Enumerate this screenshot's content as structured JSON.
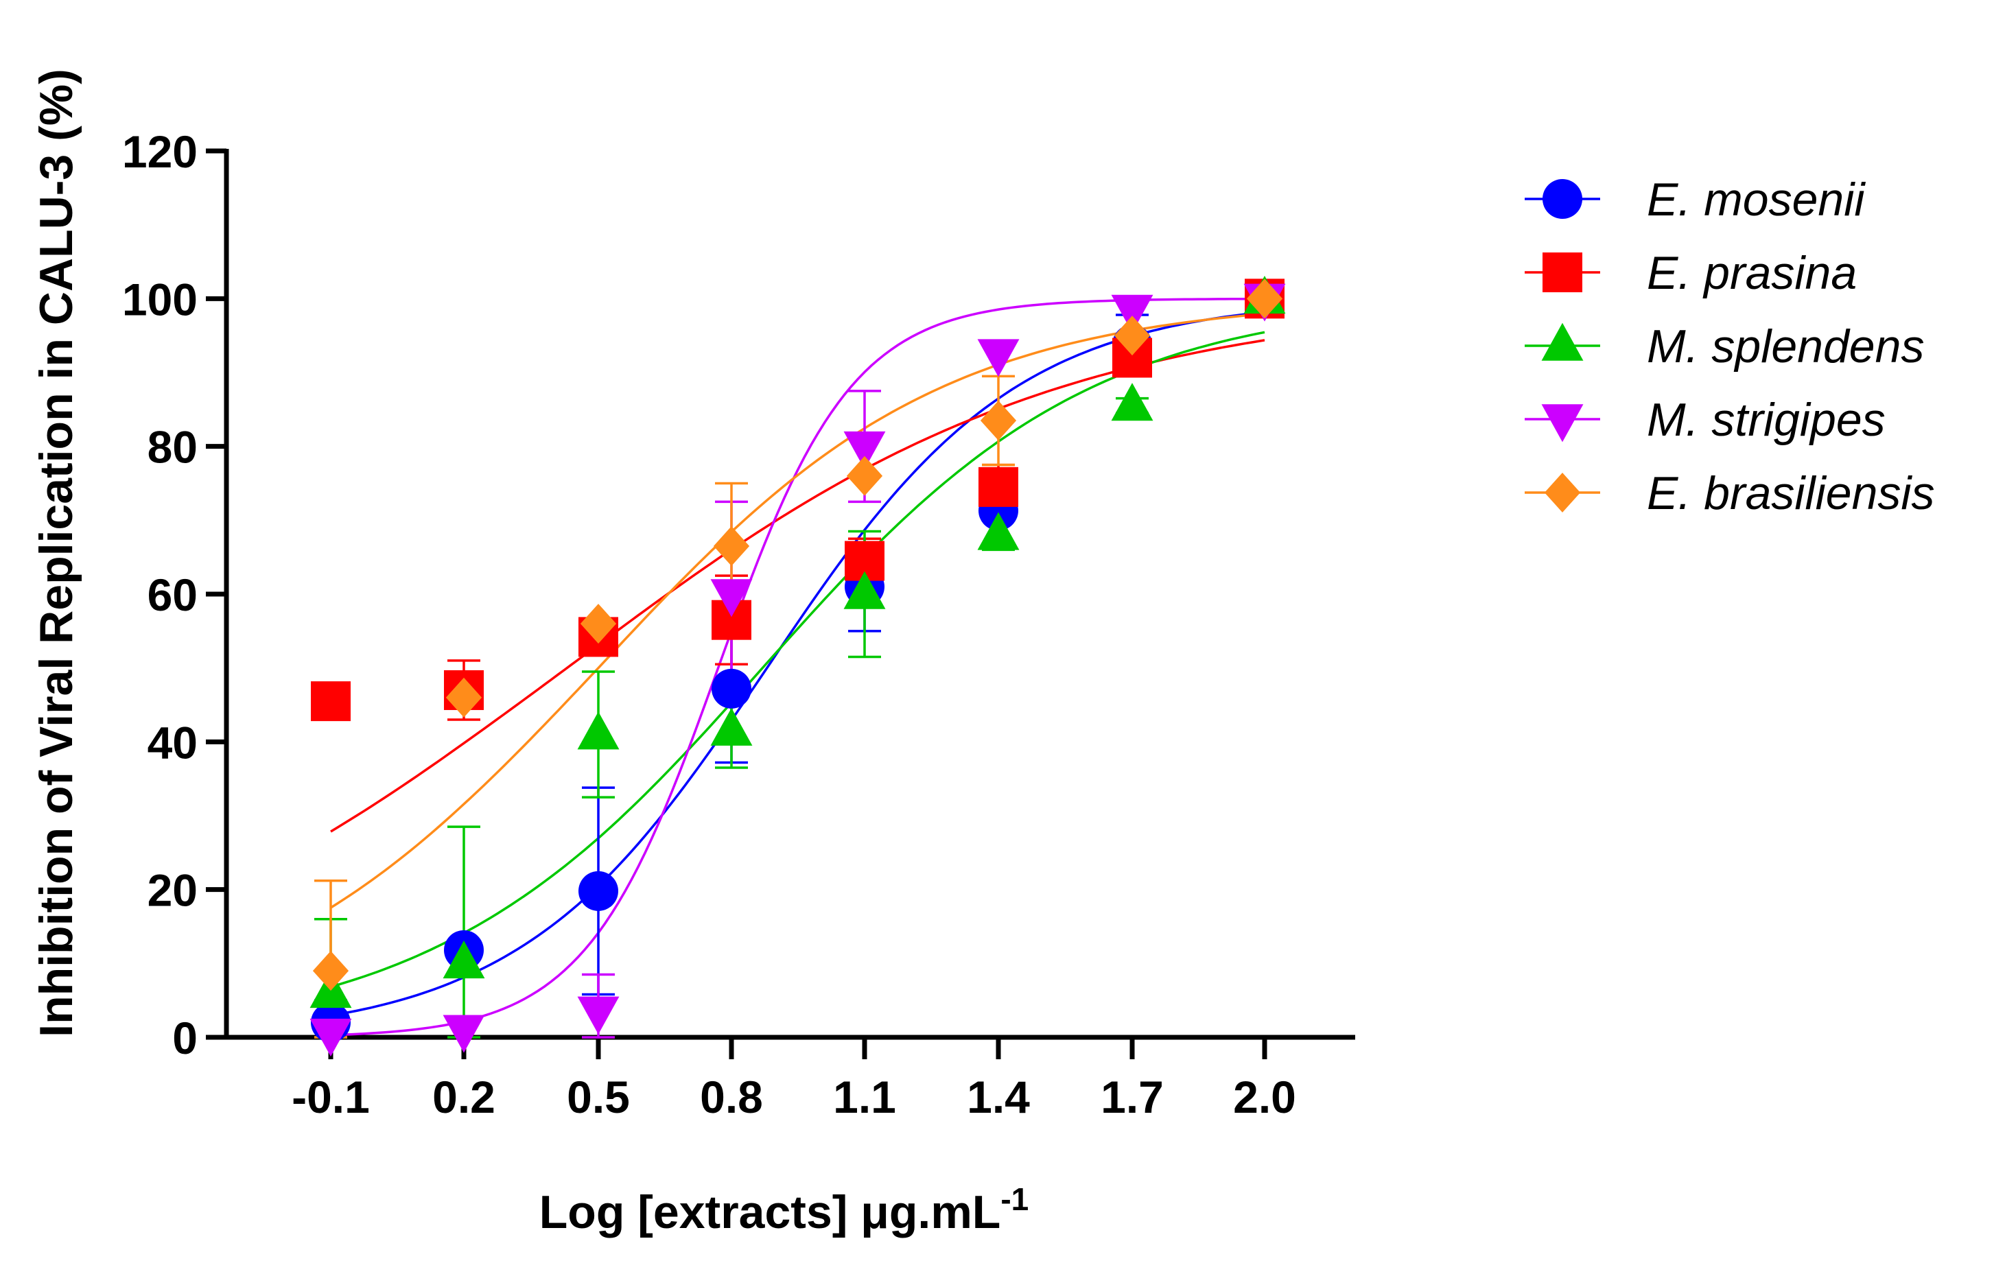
{
  "chart_data": {
    "type": "line",
    "title": "",
    "xlabel": "Log [extracts] μg.mL",
    "xlabel_superscript": "-1",
    "ylabel": "Inhibition of Viral Replication in CALU-3 (%)",
    "x": [
      -0.1,
      0.2,
      0.5,
      0.8,
      1.1,
      1.4,
      1.7,
      2.0
    ],
    "x_tick_labels": [
      "-0.1",
      "0.2",
      "0.5",
      "0.8",
      "1.1",
      "1.4",
      "1.7",
      "2.0"
    ],
    "xlim": [
      -0.35,
      2.15
    ],
    "ylim": [
      0,
      120
    ],
    "y_ticks": [
      0,
      20,
      40,
      60,
      80,
      100,
      120
    ],
    "grid": false,
    "legend_position": "right",
    "series": [
      {
        "name": "E. mosenii",
        "color": "#0000ff",
        "marker": "circle",
        "values": [
          2,
          11.8,
          19.8,
          47.2,
          61,
          71.3,
          93.8,
          100
        ],
        "error": [
          3,
          0,
          14,
          10,
          6,
          5,
          4,
          0
        ],
        "fit": {
          "bottom": 0,
          "top": 100,
          "logEC50": 0.88,
          "hill": 1.55
        }
      },
      {
        "name": "E. prasina",
        "color": "#ff0000",
        "marker": "square",
        "values": [
          45.5,
          47,
          54.2,
          56.5,
          64.5,
          74.5,
          92,
          100
        ],
        "error": [
          0,
          4,
          2,
          6,
          3,
          3,
          2,
          0
        ],
        "fit": {
          "bottom": 0,
          "top": 100,
          "logEC50": 0.43,
          "hill": 0.78
        }
      },
      {
        "name": "M. splendens",
        "color": "#00c800",
        "marker": "triangle-up",
        "values": [
          6,
          10,
          41,
          41.5,
          60,
          68,
          85.5,
          100
        ],
        "error": [
          10,
          18.5,
          8.5,
          5,
          8.5,
          2,
          1,
          0
        ],
        "fit": {
          "bottom": 0,
          "top": 100,
          "logEC50": 0.87,
          "hill": 1.17
        }
      },
      {
        "name": "M. strigipes",
        "color": "#cc00ff",
        "marker": "triangle-down",
        "values": [
          0.5,
          1,
          3.5,
          60,
          80,
          92.5,
          98.5,
          100
        ],
        "error": [
          0,
          0,
          5,
          12.5,
          7.5,
          0,
          0,
          0
        ],
        "fit": {
          "bottom": 0,
          "top": 100,
          "logEC50": 0.77,
          "hill": 2.9
        }
      },
      {
        "name": "E. brasiliensis",
        "color": "#ff8c1a",
        "marker": "diamond",
        "values": [
          9,
          46,
          56,
          66.5,
          76,
          83.5,
          95,
          100
        ],
        "error": [
          12.2,
          0,
          0,
          8.5,
          0,
          6,
          0,
          0
        ],
        "fit": {
          "bottom": 0,
          "top": 100,
          "logEC50": 0.5,
          "hill": 1.12
        }
      }
    ]
  }
}
